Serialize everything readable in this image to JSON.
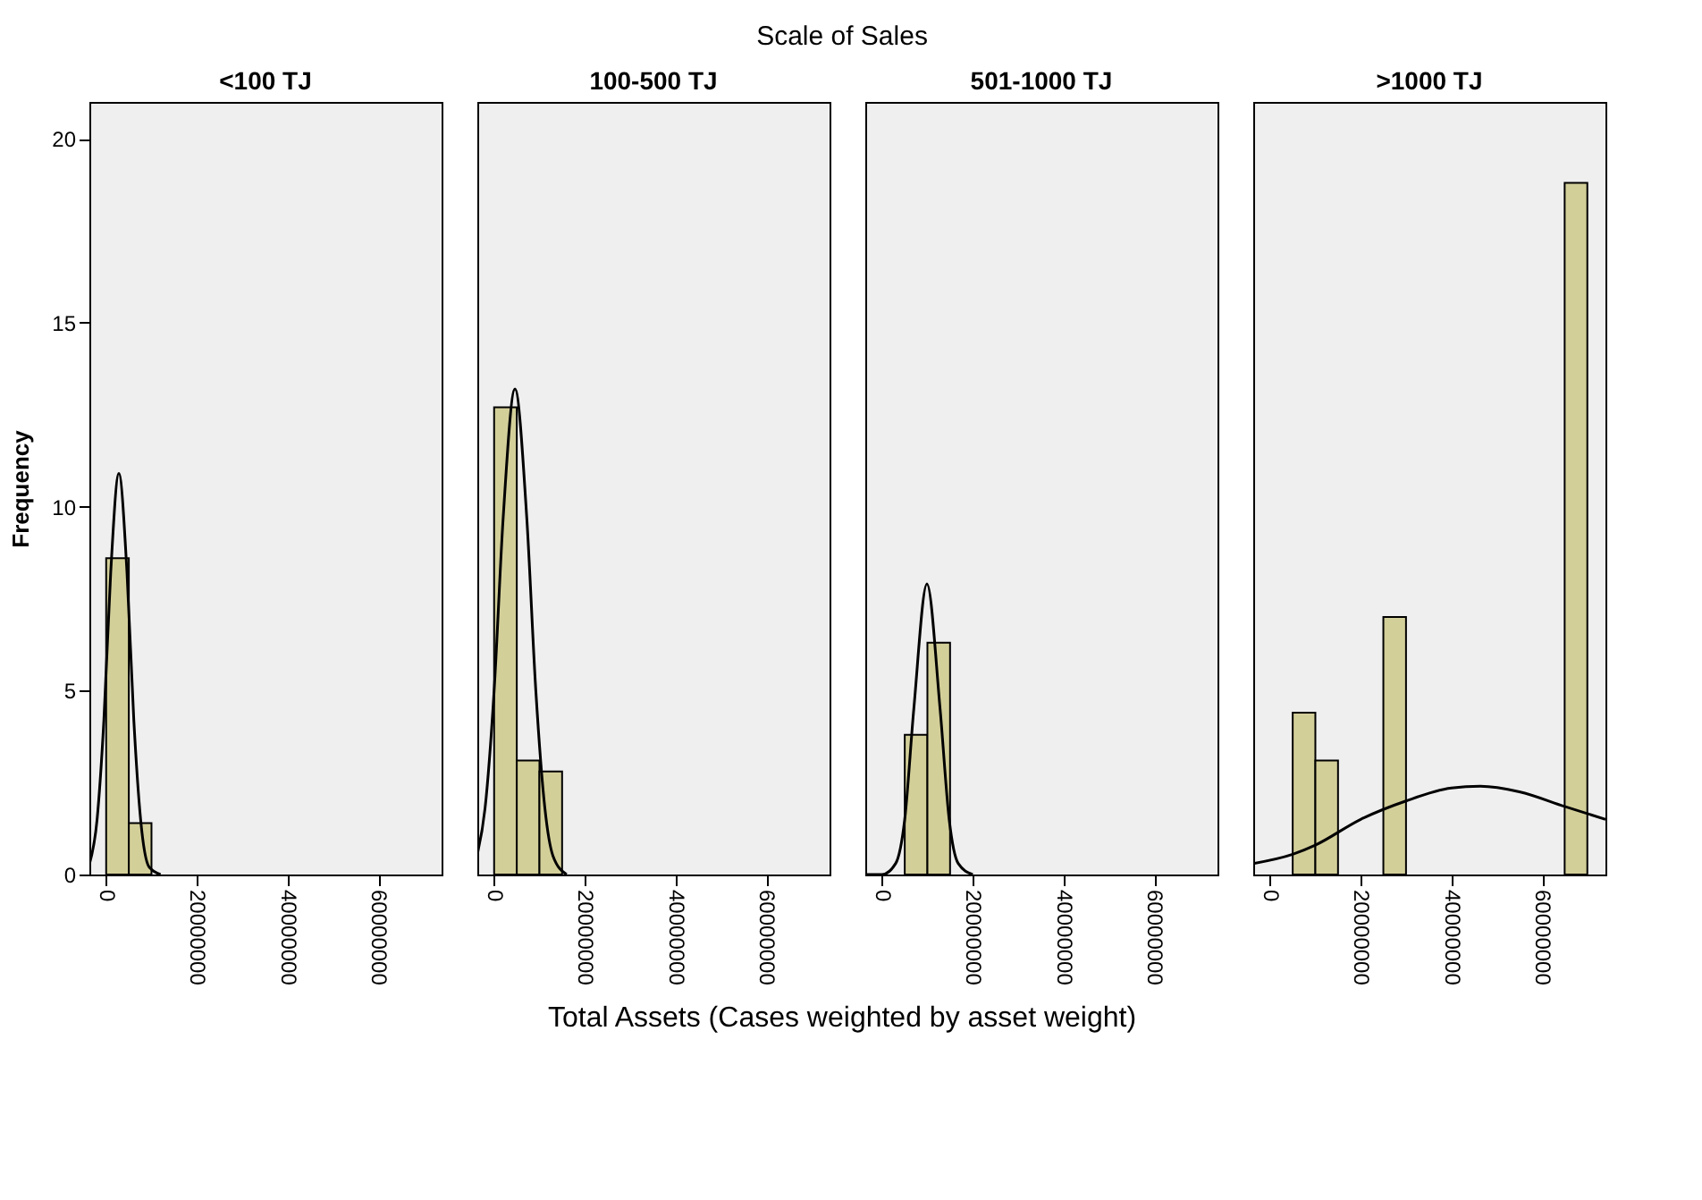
{
  "chart_data": [
    {
      "type": "histogram",
      "title": "<100 TJ",
      "ylabel": "Frequency",
      "annotations": [
        "Scale of Sales",
        "Total Assets (Cases weighted by asset weight)"
      ],
      "color": "#d3cf99",
      "bins": [
        0,
        5000000,
        10000000
      ],
      "values": [
        8.6,
        1.4
      ],
      "xlim": [
        -3700000,
        74000000
      ],
      "xticks": [
        0,
        20000000,
        40000000,
        60000000
      ],
      "ylim": [
        0,
        21
      ],
      "yticks": [
        0,
        5,
        10,
        15,
        20
      ],
      "grid": false,
      "series": [
        {
          "type": "line",
          "color": "#000000",
          "x": [
            -3700000,
            -2000000,
            -500000,
            1000000,
            2800000,
            4600000,
            6100000,
            7600000,
            9500000,
            12000000
          ],
          "values": [
            0.28,
            1.5,
            4.2,
            8.2,
            10.9,
            8.2,
            4.2,
            1.5,
            0.2,
            0.0
          ]
        }
      ]
    },
    {
      "type": "histogram",
      "title": "100-500 TJ",
      "tick_labels": "x",
      "color": "#d3cf99",
      "bins": [
        0,
        5000000,
        10000000,
        15000000
      ],
      "values": [
        12.7,
        3.1,
        2.8
      ],
      "xlim": [
        -3700000,
        74000000
      ],
      "xticks": [
        0,
        20000000,
        40000000,
        60000000
      ],
      "ylim": [
        0,
        21
      ],
      "yticks": [
        0,
        5,
        10,
        15,
        20
      ],
      "grid": false,
      "series": [
        {
          "type": "line",
          "color": "#000000",
          "x": [
            -3700000,
            -2000000,
            0,
            2000000,
            4600000,
            7200000,
            9200000,
            11200000,
            13000000,
            16000000
          ],
          "values": [
            0.55,
            1.8,
            5.0,
            9.7,
            13.2,
            9.7,
            5.0,
            1.8,
            0.5,
            0.0
          ]
        }
      ]
    },
    {
      "type": "histogram",
      "title": "501-1000 TJ",
      "tick_labels": "x",
      "color": "#d3cf99",
      "bins": [
        5000000,
        10000000,
        15000000
      ],
      "values": [
        3.8,
        6.3
      ],
      "xlim": [
        -3700000,
        74000000
      ],
      "xticks": [
        0,
        20000000,
        40000000,
        60000000
      ],
      "ylim": [
        0,
        21
      ],
      "yticks": [
        0,
        5,
        10,
        15,
        20
      ],
      "grid": false,
      "series": [
        {
          "type": "line",
          "color": "#000000",
          "x": [
            -3700000,
            0,
            3000000,
            5000000,
            7000000,
            9900000,
            12800000,
            14800000,
            16800000,
            20000000
          ],
          "values": [
            0.0,
            0.0,
            0.3,
            1.5,
            4.5,
            7.9,
            4.5,
            1.5,
            0.3,
            0.0
          ]
        }
      ]
    },
    {
      "type": "histogram",
      "title": ">1000 TJ",
      "tick_labels": "x",
      "color": "#d3cf99",
      "bins": [
        5000000,
        10000000,
        15000000,
        20000000,
        25000000,
        30000000,
        35000000,
        40000000,
        45000000,
        50000000,
        55000000,
        60000000,
        65000000,
        70000000
      ],
      "values": [
        4.4,
        3.1,
        0,
        0,
        7.0,
        0,
        0,
        0,
        0,
        0,
        0,
        0,
        18.8
      ],
      "xlim": [
        -3700000,
        74000000
      ],
      "xticks": [
        0,
        20000000,
        40000000,
        60000000
      ],
      "ylim": [
        0,
        21
      ],
      "yticks": [
        0,
        5,
        10,
        15,
        20
      ],
      "grid": false,
      "series": [
        {
          "type": "line",
          "color": "#000000",
          "x": [
            -3700000,
            5000000,
            10000000,
            20000000,
            30000000,
            40000000,
            46400000,
            55000000,
            65000000,
            74000000
          ],
          "values": [
            0.3,
            0.55,
            0.8,
            1.5,
            2.0,
            2.35,
            2.4,
            2.25,
            1.85,
            1.5
          ]
        }
      ]
    }
  ]
}
